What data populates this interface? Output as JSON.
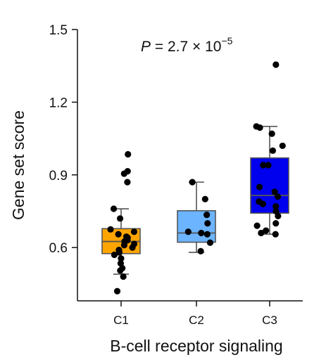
{
  "chart_data": {
    "type": "box",
    "title": "",
    "xlabel": "B-cell receptor signaling",
    "ylabel": "Gene set score",
    "ylim": [
      0.38,
      1.5
    ],
    "yticks": [
      0.6,
      0.9,
      1.2,
      1.5
    ],
    "ytick_labels": [
      "0.6",
      "0.9",
      "1.2",
      "1.5"
    ],
    "categories": [
      "C1",
      "C2",
      "C3"
    ],
    "grid": false,
    "legend": "none",
    "annotation": {
      "italic": "P",
      "text": " = 2.7 × 10",
      "superscript": "−5"
    },
    "boxes": [
      {
        "name": "C1",
        "color": "#FFA500",
        "whisker_low": 0.49,
        "q1": 0.575,
        "median": 0.625,
        "q3": 0.678,
        "whisker_high": 0.76,
        "points": [
          0.985,
          0.915,
          0.905,
          0.87,
          0.76,
          0.72,
          0.675,
          0.665,
          0.655,
          0.645,
          0.64,
          0.63,
          0.625,
          0.615,
          0.61,
          0.6,
          0.59,
          0.58,
          0.57,
          0.555,
          0.535,
          0.515,
          0.505,
          0.48,
          0.42
        ]
      },
      {
        "name": "C2",
        "color": "#6CB4FF",
        "whisker_low": 0.58,
        "q1": 0.622,
        "median": 0.66,
        "q3": 0.752,
        "whisker_high": 0.87,
        "points": [
          0.87,
          0.8,
          0.735,
          0.7,
          0.665,
          0.66,
          0.655,
          0.62,
          0.585
        ]
      },
      {
        "name": "C3",
        "color": "#0000EE",
        "whisker_low": 0.655,
        "q1": 0.742,
        "median": 0.815,
        "q3": 0.97,
        "whisker_high": 1.1,
        "points": [
          1.355,
          1.1,
          1.095,
          1.07,
          1.02,
          1.0,
          0.94,
          0.94,
          0.85,
          0.83,
          0.81,
          0.79,
          0.78,
          0.77,
          0.75,
          0.73,
          0.7,
          0.69,
          0.67,
          0.66,
          0.655
        ]
      }
    ]
  }
}
